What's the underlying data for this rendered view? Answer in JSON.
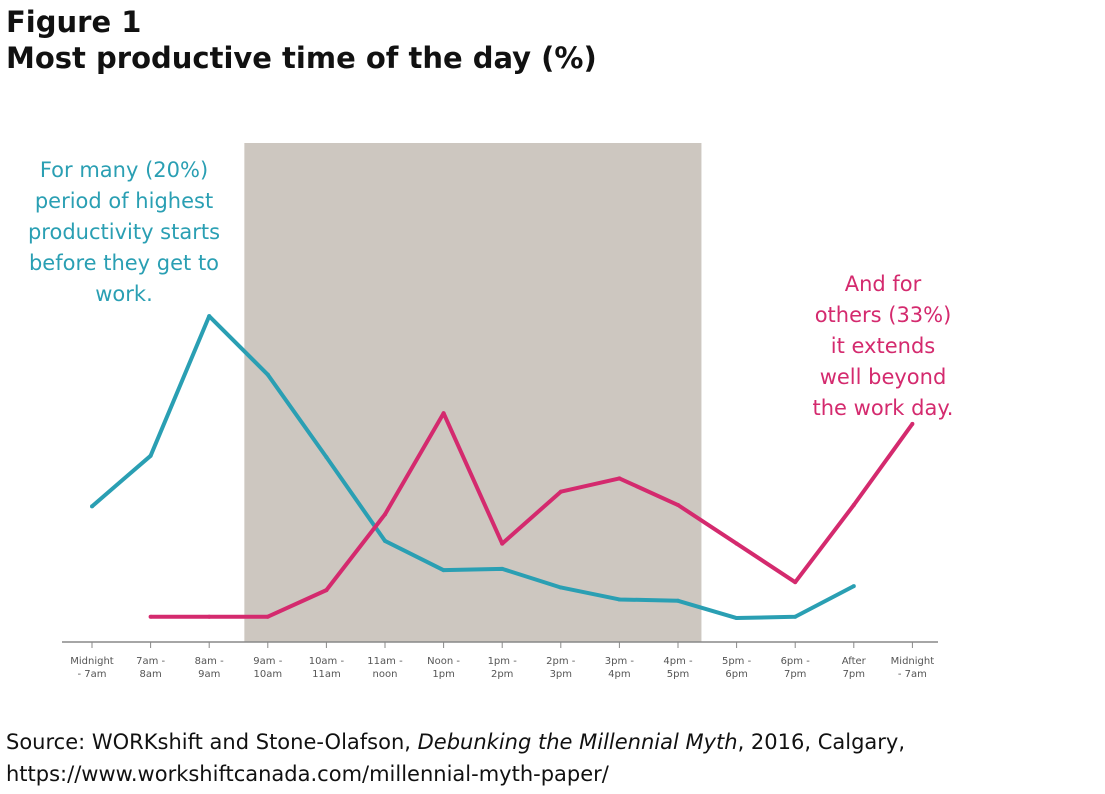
{
  "figure": {
    "label": "Figure 1",
    "title": "Most productive time of the day (%)"
  },
  "colors": {
    "before_work_series": "#2a9fb3",
    "after_work_series": "#d42a6e",
    "work_hours_band": "#cdc7c0",
    "axis": "#888888"
  },
  "chart_data": {
    "type": "line",
    "categories": [
      "Midnight - 7am",
      "7am - 8am",
      "8am - 9am",
      "9am - 10am",
      "10am - 11am",
      "11am - noon",
      "Noon - 1pm",
      "1pm - 2pm",
      "2pm - 3pm",
      "3pm - 4pm",
      "4pm - 5pm",
      "5pm - 6pm",
      "6pm - 7pm",
      "After 7pm",
      "Midnight - 7am"
    ],
    "tick_lines": [
      [
        "Midnight",
        "- 7am"
      ],
      [
        "7am -",
        "8am"
      ],
      [
        "8am -",
        "9am"
      ],
      [
        "9am -",
        "10am"
      ],
      [
        "10am -",
        "11am"
      ],
      [
        "11am -",
        "noon"
      ],
      [
        "Noon -",
        "1pm"
      ],
      [
        "1pm -",
        "2pm"
      ],
      [
        "2pm -",
        "3pm"
      ],
      [
        "3pm -",
        "4pm"
      ],
      [
        "4pm -",
        "5pm"
      ],
      [
        "5pm -",
        "6pm"
      ],
      [
        "6pm -",
        "7pm"
      ],
      [
        "After",
        "7pm"
      ],
      [
        "Midnight",
        "- 7am"
      ]
    ],
    "ylim": [
      0,
      30
    ],
    "shaded_band": {
      "from_index": 2.6,
      "to_index": 10.4
    },
    "series": [
      {
        "key": "before_work",
        "values": [
          10.2,
          14,
          24.5,
          20.1,
          13.9,
          7.6,
          5.4,
          5.5,
          4.1,
          3.2,
          3.1,
          1.8,
          1.9,
          4.2,
          null
        ]
      },
      {
        "key": "after_work",
        "values": [
          null,
          1.9,
          1.9,
          1.9,
          3.9,
          9.6,
          17.2,
          7.4,
          11.3,
          12.3,
          10.3,
          7.4,
          4.5,
          10.3,
          16.4
        ]
      }
    ],
    "annotations": [
      {
        "key": "before_work",
        "lines": [
          "For many (20%)",
          "period of highest",
          "productivity starts",
          "before they get to",
          "work."
        ]
      },
      {
        "key": "after_work",
        "lines": [
          "And for",
          "others (33%)",
          "it extends",
          "well beyond",
          "the work day."
        ]
      }
    ]
  },
  "source": {
    "prefix": "Source: WORKshift and Stone-Olafson, ",
    "publication": "Debunking the Millennial Myth",
    "suffix": ", 2016, Calgary,",
    "url": "https://www.workshiftcanada.com/millennial-myth-paper/"
  }
}
